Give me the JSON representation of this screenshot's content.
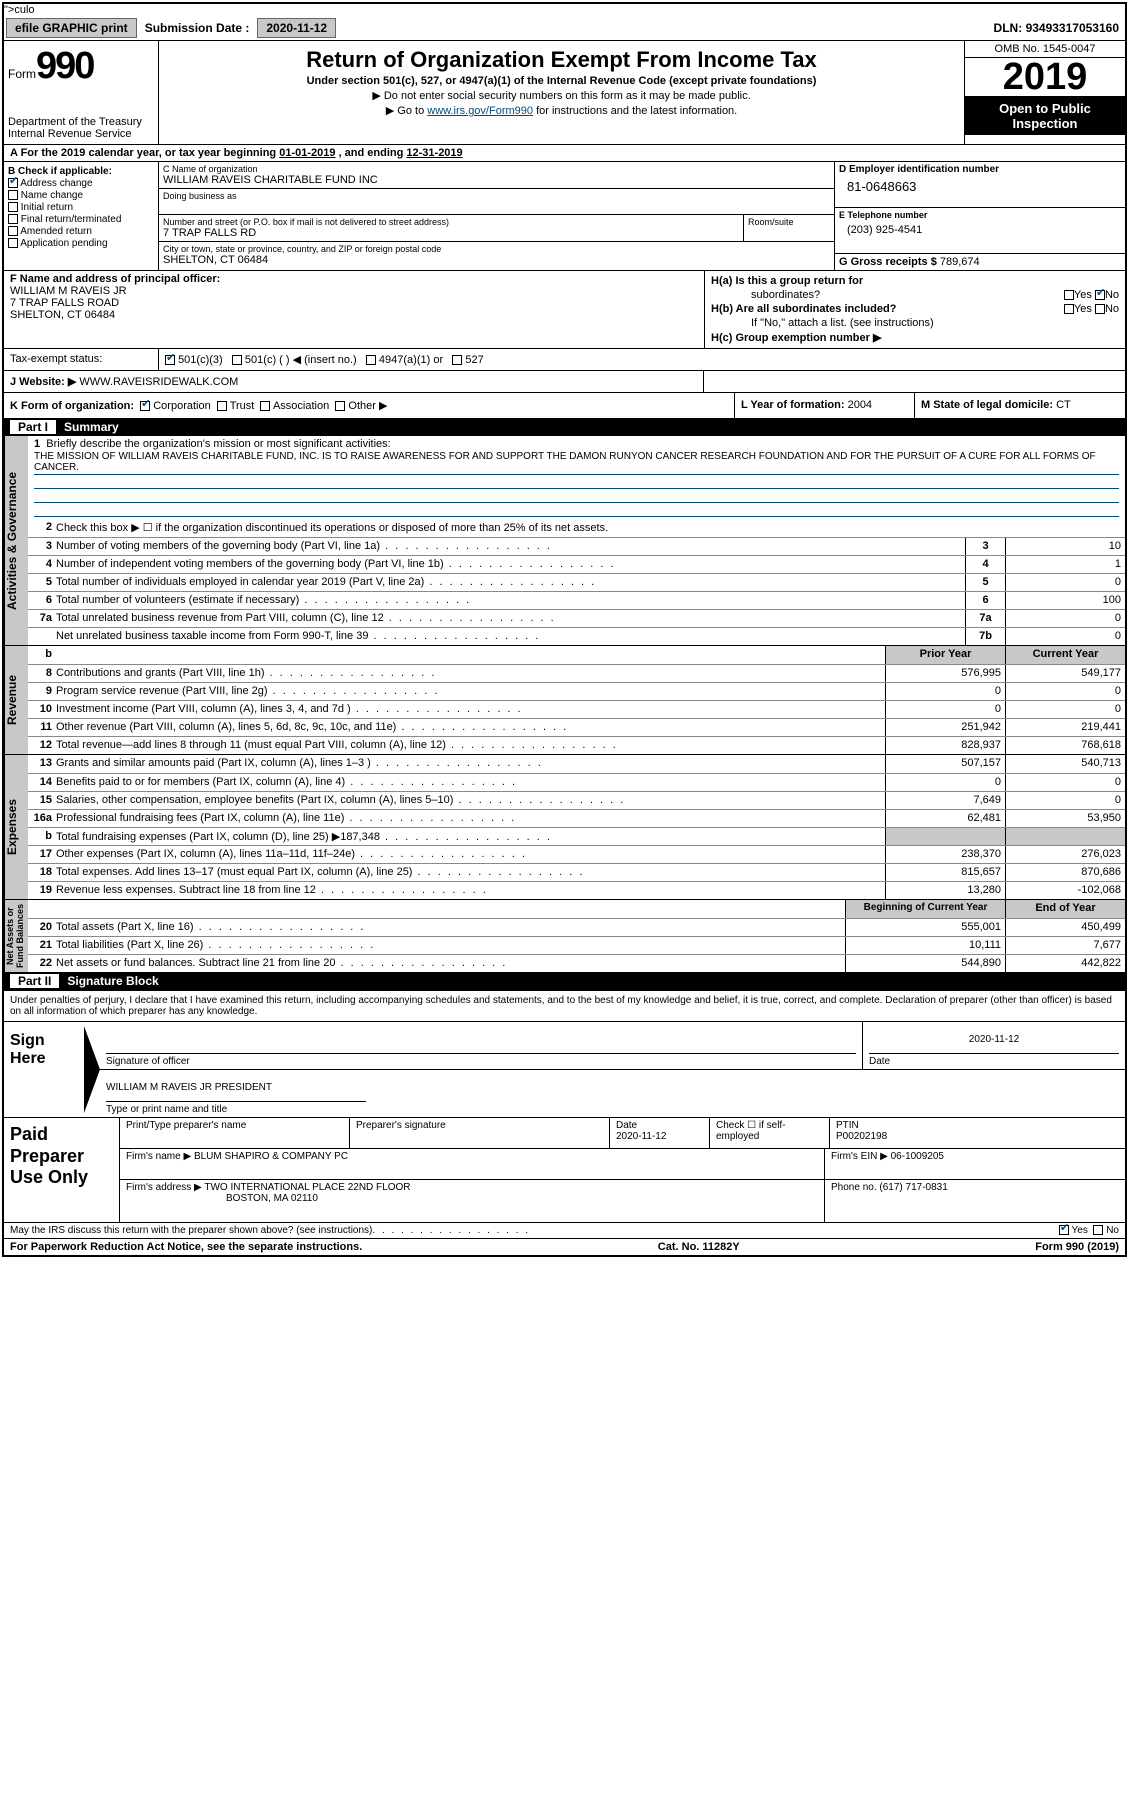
{
  "topbar": {
    "efile": "efile GRAPHIC print",
    "sub_label": "Submission Date :",
    "sub_date": "2020-11-12",
    "dln_label": "DLN:",
    "dln": "93493317053160"
  },
  "header": {
    "form_word": "Form",
    "form_num": "990",
    "dept": "Department of the Treasury\nInternal Revenue Service",
    "title": "Return of Organization Exempt From Income Tax",
    "subtitle": "Under section 501(c), 527, or 4947(a)(1) of the Internal Revenue Code (except private foundations)",
    "note1": "▶ Do not enter social security numbers on this form as it may be made public.",
    "note2_pre": "▶ Go to ",
    "note2_link": "www.irs.gov/Form990",
    "note2_post": " for instructions and the latest information.",
    "omb": "OMB No. 1545-0047",
    "year": "2019",
    "inspect1": "Open to Public",
    "inspect2": "Inspection"
  },
  "row_a": {
    "pre": "A For the 2019 calendar year, or tax year beginning ",
    "begin": "01-01-2019",
    "mid": "  , and ending ",
    "end": "12-31-2019"
  },
  "col_b": {
    "label": "B Check if applicable:",
    "items": [
      {
        "txt": "Address change",
        "checked": true
      },
      {
        "txt": "Name change",
        "checked": false
      },
      {
        "txt": "Initial return",
        "checked": false
      },
      {
        "txt": "Final return/terminated",
        "checked": false
      },
      {
        "txt": "Amended return",
        "checked": false
      },
      {
        "txt": "Application pending",
        "checked": false
      }
    ]
  },
  "col_c": {
    "name_lbl": "C Name of organization",
    "name": "WILLIAM RAVEIS CHARITABLE FUND INC",
    "dba_lbl": "Doing business as",
    "addr_lbl": "Number and street (or P.O. box if mail is not delivered to street address)",
    "addr": "7 TRAP FALLS RD",
    "room_lbl": "Room/suite",
    "city_lbl": "City or town, state or province, country, and ZIP or foreign postal code",
    "city": "SHELTON, CT  06484"
  },
  "col_d": {
    "ein_lbl": "D Employer identification number",
    "ein": "81-0648663",
    "phone_lbl": "E Telephone number",
    "phone": "(203) 925-4541",
    "gross_lbl": "G Gross receipts $",
    "gross": "789,674"
  },
  "row_f": {
    "lbl": "F Name and address of principal officer:",
    "name": "WILLIAM M RAVEIS JR",
    "addr": "7 TRAP FALLS ROAD",
    "city": "SHELTON, CT  06484"
  },
  "row_h": {
    "ha_lbl": "H(a)  Is this a group return for",
    "ha_sub": "subordinates?",
    "hb_lbl": "H(b)  Are all subordinates included?",
    "hb_note": "If \"No,\" attach a list. (see instructions)",
    "hc_lbl": "H(c)  Group exemption number ▶",
    "yes": "Yes",
    "no": "No"
  },
  "tax": {
    "lbl": "Tax-exempt status:",
    "opts": [
      "501(c)(3)",
      "501(c) (   ) ◀ (insert no.)",
      "4947(a)(1) or",
      "527"
    ]
  },
  "website": {
    "lbl": "J  Website: ▶",
    "val": "WWW.RAVEISRIDEWALK.COM"
  },
  "row_k": {
    "lbl": "K Form of organization:",
    "opts": [
      "Corporation",
      "Trust",
      "Association",
      "Other ▶"
    ],
    "l_lbl": "L Year of formation:",
    "l_val": "2004",
    "m_lbl": "M State of legal domicile:",
    "m_val": "CT"
  },
  "part1": {
    "hdr": "Summary",
    "q1_lbl": "Briefly describe the organization's mission or most significant activities:",
    "mission": "THE MISSION OF WILLIAM RAVEIS CHARITABLE FUND, INC. IS TO RAISE AWARENESS FOR AND SUPPORT THE DAMON RUNYON CANCER RESEARCH FOUNDATION AND FOR THE PURSUIT OF A CURE FOR ALL FORMS OF CANCER.",
    "q2": "Check this box ▶ ☐  if the organization discontinued its operations or disposed of more than 25% of its net assets.",
    "lines_gov": [
      {
        "n": "3",
        "t": "Number of voting members of the governing body (Part VI, line 1a)",
        "box": "3",
        "v": "10"
      },
      {
        "n": "4",
        "t": "Number of independent voting members of the governing body (Part VI, line 1b)",
        "box": "4",
        "v": "1"
      },
      {
        "n": "5",
        "t": "Total number of individuals employed in calendar year 2019 (Part V, line 2a)",
        "box": "5",
        "v": "0"
      },
      {
        "n": "6",
        "t": "Total number of volunteers (estimate if necessary)",
        "box": "6",
        "v": "100"
      },
      {
        "n": "7a",
        "t": "Total unrelated business revenue from Part VIII, column (C), line 12",
        "box": "7a",
        "v": "0"
      },
      {
        "n": "",
        "t": "Net unrelated business taxable income from Form 990-T, line 39",
        "box": "7b",
        "v": "0"
      }
    ],
    "py_hdr": "Prior Year",
    "cy_hdr": "Current Year",
    "lines_rev": [
      {
        "n": "8",
        "t": "Contributions and grants (Part VIII, line 1h)",
        "py": "576,995",
        "cy": "549,177"
      },
      {
        "n": "9",
        "t": "Program service revenue (Part VIII, line 2g)",
        "py": "0",
        "cy": "0"
      },
      {
        "n": "10",
        "t": "Investment income (Part VIII, column (A), lines 3, 4, and 7d )",
        "py": "0",
        "cy": "0"
      },
      {
        "n": "11",
        "t": "Other revenue (Part VIII, column (A), lines 5, 6d, 8c, 9c, 10c, and 11e)",
        "py": "251,942",
        "cy": "219,441"
      },
      {
        "n": "12",
        "t": "Total revenue—add lines 8 through 11 (must equal Part VIII, column (A), line 12)",
        "py": "828,937",
        "cy": "768,618"
      }
    ],
    "lines_exp": [
      {
        "n": "13",
        "t": "Grants and similar amounts paid (Part IX, column (A), lines 1–3 )",
        "py": "507,157",
        "cy": "540,713"
      },
      {
        "n": "14",
        "t": "Benefits paid to or for members (Part IX, column (A), line 4)",
        "py": "0",
        "cy": "0"
      },
      {
        "n": "15",
        "t": "Salaries, other compensation, employee benefits (Part IX, column (A), lines 5–10)",
        "py": "7,649",
        "cy": "0"
      },
      {
        "n": "16a",
        "t": "Professional fundraising fees (Part IX, column (A), line 11e)",
        "py": "62,481",
        "cy": "53,950"
      },
      {
        "n": "b",
        "t": "Total fundraising expenses (Part IX, column (D), line 25) ▶187,348",
        "py": "SHADED",
        "cy": "SHADED"
      },
      {
        "n": "17",
        "t": "Other expenses (Part IX, column (A), lines 11a–11d, 11f–24e)",
        "py": "238,370",
        "cy": "276,023"
      },
      {
        "n": "18",
        "t": "Total expenses. Add lines 13–17 (must equal Part IX, column (A), line 25)",
        "py": "815,657",
        "cy": "870,686"
      },
      {
        "n": "19",
        "t": "Revenue less expenses. Subtract line 18 from line 12",
        "py": "13,280",
        "cy": "-102,068"
      }
    ],
    "bcy_hdr": "Beginning of Current Year",
    "eoy_hdr": "End of Year",
    "lines_net": [
      {
        "n": "20",
        "t": "Total assets (Part X, line 16)",
        "py": "555,001",
        "cy": "450,499"
      },
      {
        "n": "21",
        "t": "Total liabilities (Part X, line 26)",
        "py": "10,111",
        "cy": "7,677"
      },
      {
        "n": "22",
        "t": "Net assets or fund balances. Subtract line 21 from line 20",
        "py": "544,890",
        "cy": "442,822"
      }
    ],
    "vtab_gov": "Activities & Governance",
    "vtab_rev": "Revenue",
    "vtab_exp": "Expenses",
    "vtab_net": "Net Assets or\nFund Balances"
  },
  "part2": {
    "hdr": "Signature Block",
    "intro": "Under penalties of perjury, I declare that I have examined this return, including accompanying schedules and statements, and to the best of my knowledge and belief, it is true, correct, and complete. Declaration of preparer (other than officer) is based on all information of which preparer has any knowledge.",
    "sign_here": "Sign Here",
    "sig_officer_lbl": "Signature of officer",
    "date_lbl": "Date",
    "date_val": "2020-11-12",
    "name_title": "WILLIAM M RAVEIS JR  PRESIDENT",
    "name_title_lbl": "Type or print name and title",
    "paid": "Paid Preparer Use Only",
    "prep_name_lbl": "Print/Type preparer's name",
    "prep_sig_lbl": "Preparer's signature",
    "prep_date_lbl": "Date",
    "prep_date": "2020-11-12",
    "self_emp_lbl": "Check ☐ if self-employed",
    "ptin_lbl": "PTIN",
    "ptin": "P00202198",
    "firm_name_lbl": "Firm's name     ▶",
    "firm_name": "BLUM SHAPIRO & COMPANY PC",
    "firm_ein_lbl": "Firm's EIN ▶",
    "firm_ein": "06-1009205",
    "firm_addr_lbl": "Firm's address ▶",
    "firm_addr1": "TWO INTERNATIONAL PLACE 22ND FLOOR",
    "firm_addr2": "BOSTON, MA  02110",
    "firm_phone_lbl": "Phone no.",
    "firm_phone": "(617) 717-0831",
    "irs_q": "May the IRS discuss this return with the preparer shown above? (see instructions)",
    "yes": "Yes",
    "no": "No"
  },
  "footer": {
    "left": "For Paperwork Reduction Act Notice, see the separate instructions.",
    "mid": "Cat. No. 11282Y",
    "right": "Form 990 (2019)"
  }
}
